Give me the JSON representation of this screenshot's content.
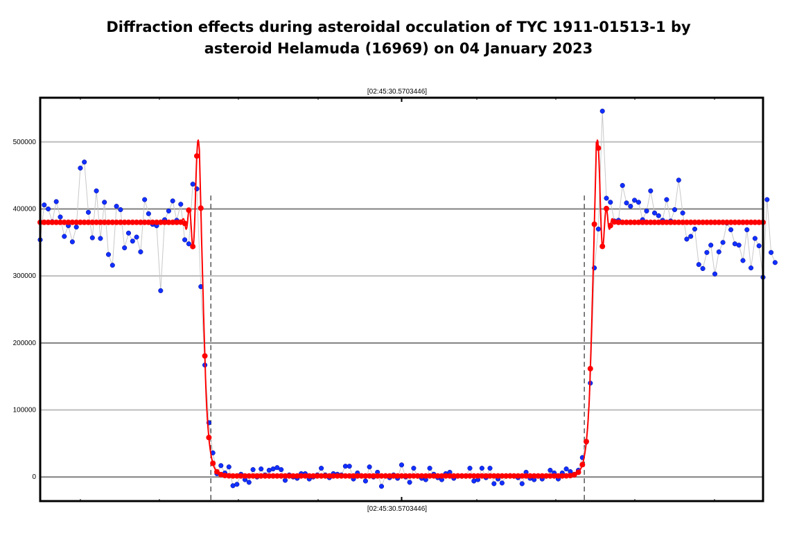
{
  "chart_data": {
    "type": "line",
    "title_line1": "Diffraction effects during asteroidal occulation of TYC 1911-01513-1 by",
    "title_line2": "asteroid Helamuda (16969) on 04 January 2023",
    "top_time_label": "[02:45:30.5703446]",
    "bottom_time_label": "[02:45:30.5703446]",
    "yticks": [
      0,
      100000,
      200000,
      300000,
      400000,
      500000
    ],
    "ytick_labels": [
      "0",
      "100000",
      "200000",
      "300000",
      "400000",
      "500000"
    ],
    "ylim": [
      -36000,
      566000
    ],
    "xlim": [
      0,
      180
    ],
    "grid": true,
    "event_markers": [
      42.5,
      135.5
    ],
    "baseline": 380000,
    "series": [
      {
        "color": "#1030ff",
        "values": [
          354000,
          406000,
          400000,
          381000,
          411000,
          388000,
          359000,
          375000,
          351000,
          373000,
          461000,
          470000,
          395000,
          357000,
          427000,
          356000,
          410000,
          332000,
          316000,
          404000,
          399000,
          342000,
          364000,
          352000,
          358000,
          336000,
          414000,
          393000,
          377000,
          375000,
          278000,
          384000,
          397000,
          412000,
          383000,
          407000,
          354000,
          348000,
          437000,
          430000,
          284000,
          167000,
          81000,
          36000,
          5000,
          17000,
          6000,
          15000,
          -13000,
          -11000,
          4000,
          -4000,
          -8000,
          11000,
          0,
          12000,
          3000,
          10000,
          12000,
          14000,
          11000,
          -5000,
          3000,
          0,
          -2000,
          5000,
          5000,
          -3000,
          0,
          3000,
          13000,
          3000,
          -1000,
          5000,
          4000,
          3000,
          16000,
          16000,
          -3000,
          6000,
          2000,
          -6000,
          15000,
          0,
          7000,
          -14000,
          2000,
          -1000,
          3000,
          -2000,
          18000,
          0,
          -8000,
          13000,
          1000,
          -2000,
          -4000,
          13000,
          4000,
          -1000,
          -4000,
          5000,
          7000,
          -2000,
          2000,
          1000,
          1000,
          13000,
          -6000,
          -4000,
          13000,
          -1000,
          13000,
          -10000,
          -3000,
          -9000,
          1000,
          2000,
          1000,
          -1000,
          -10000,
          7000,
          -2000,
          -4000,
          1000,
          -3000,
          1000,
          10000,
          6000,
          -3000,
          6000,
          12000,
          8000,
          4000,
          10000,
          29000,
          52000,
          140000,
          312000,
          370000,
          546000,
          416000,
          410000,
          382000,
          383000,
          435000,
          409000,
          404000,
          413000,
          410000,
          384000,
          397000,
          427000,
          394000,
          390000,
          383000,
          414000,
          382000,
          399000,
          443000,
          394000,
          355000,
          359000,
          370000,
          317000,
          311000,
          335000,
          346000,
          303000,
          336000,
          350000,
          379000,
          369000,
          348000,
          346000,
          323000,
          369000,
          312000,
          356000,
          345000,
          298000,
          414000,
          335000,
          320000
        ]
      },
      {
        "color": "#ff0000",
        "model": "Fresnel diffraction model"
      }
    ]
  }
}
